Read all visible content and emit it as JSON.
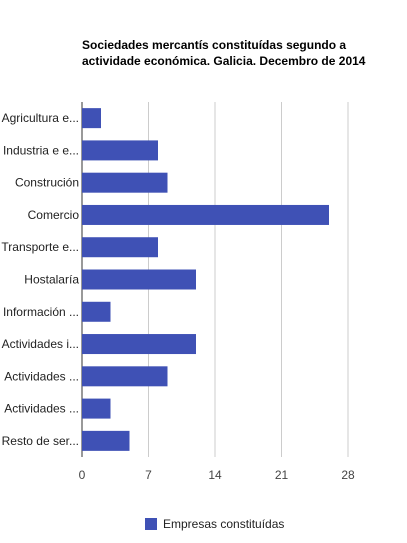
{
  "chart_data": {
    "type": "bar",
    "orientation": "horizontal",
    "title": "Sociedades mercantís constituídas segundo a actividade económica. Galicia. Decembro de 2014",
    "categories": [
      "Agricultura e...",
      "Industria e e...",
      "Construción",
      "Comercio",
      "Transporte e...",
      "Hostalaría",
      "Información ...",
      "Actividades i...",
      "Actividades ...",
      "Actividades ...",
      "Resto de ser..."
    ],
    "series": [
      {
        "name": "Empresas constituídas",
        "color": "#3f51b5",
        "values": [
          2,
          8,
          9,
          26,
          8,
          12,
          3,
          12,
          9,
          3,
          5
        ]
      }
    ],
    "xlim": [
      0,
      28
    ],
    "xticks": [
      0,
      7,
      14,
      21,
      28
    ],
    "grid": true,
    "legend": "bottom"
  }
}
